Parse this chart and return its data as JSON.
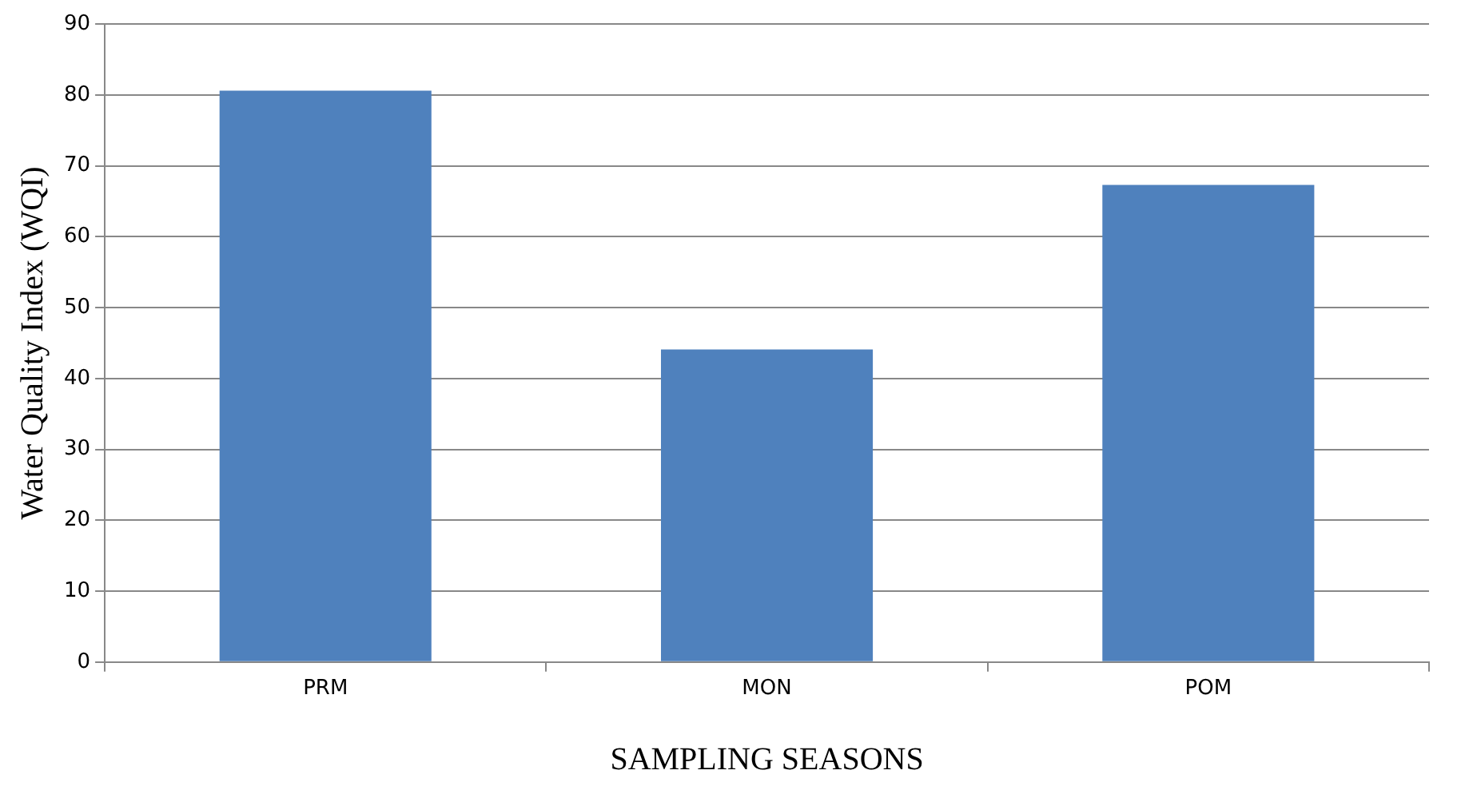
{
  "chart_data": {
    "type": "bar",
    "xlabel": "SAMPLING SEASONS",
    "ylabel": "Water Quality Index (WQI)",
    "categories": [
      "PRM",
      "MON",
      "POM"
    ],
    "values": [
      80.6,
      44.1,
      67.3
    ],
    "color": "#4f81bd",
    "ylim": [
      0,
      90
    ],
    "yticks": [
      0,
      10,
      20,
      30,
      40,
      50,
      60,
      70,
      80,
      90
    ],
    "grid": "y"
  }
}
